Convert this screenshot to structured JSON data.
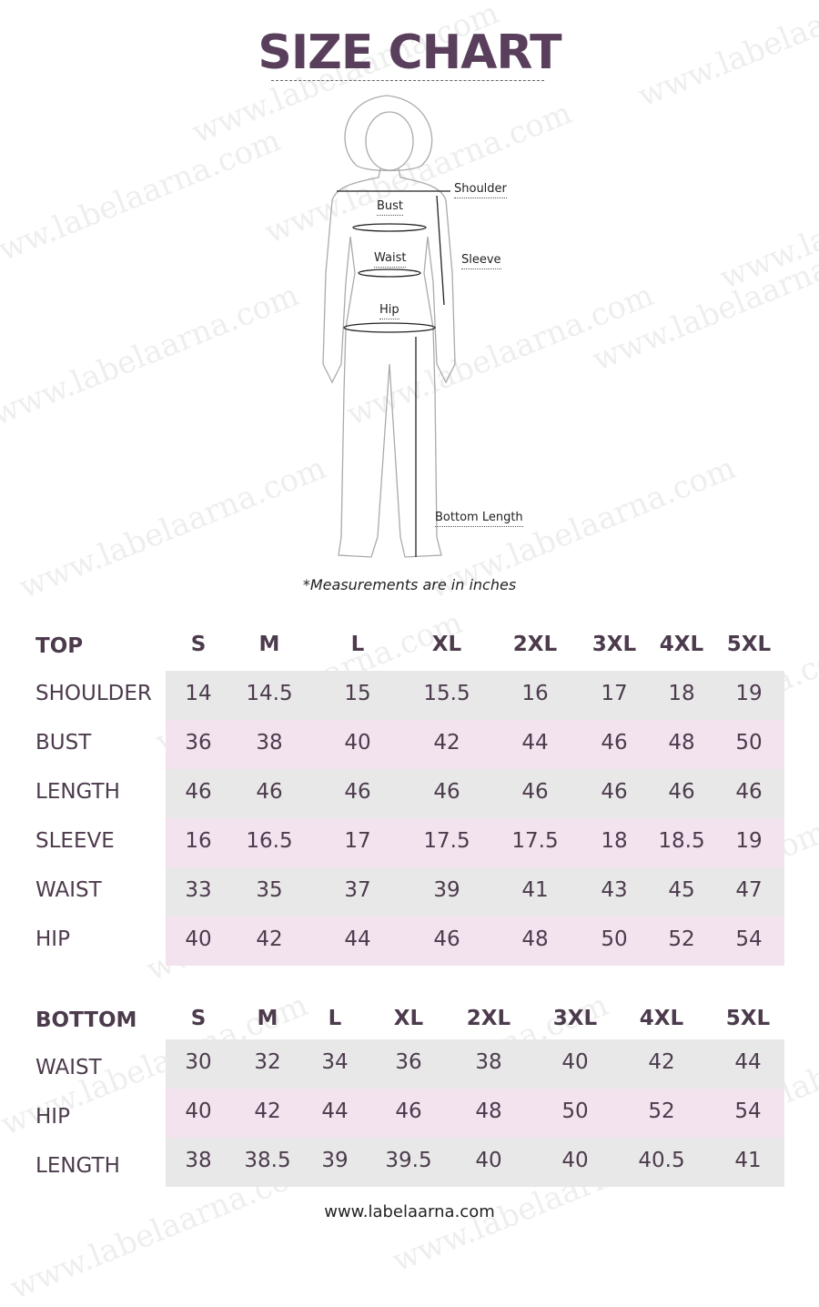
{
  "title": "SIZE CHART",
  "watermark": "www.labelaarna.com",
  "figure": {
    "labels": {
      "shoulder": "Shoulder",
      "bust": "Bust",
      "waist": "Waist",
      "sleeve": "Sleeve",
      "hip": "Hip",
      "bottom_length": "Bottom Length"
    }
  },
  "note": "*Measurements are in inches",
  "top_table": {
    "section": "TOP",
    "sizes": [
      "S",
      "M",
      "L",
      "XL",
      "2XL",
      "3XL",
      "4XL",
      "5XL"
    ],
    "rows": [
      {
        "label": "SHOULDER",
        "values": [
          "14",
          "14.5",
          "15",
          "15.5",
          "16",
          "17",
          "18",
          "19"
        ]
      },
      {
        "label": "BUST",
        "values": [
          "36",
          "38",
          "40",
          "42",
          "44",
          "46",
          "48",
          "50"
        ]
      },
      {
        "label": "LENGTH",
        "values": [
          "46",
          "46",
          "46",
          "46",
          "46",
          "46",
          "46",
          "46"
        ]
      },
      {
        "label": "SLEEVE",
        "values": [
          "16",
          "16.5",
          "17",
          "17.5",
          "17.5",
          "18",
          "18.5",
          "19"
        ]
      },
      {
        "label": "WAIST",
        "values": [
          "33",
          "35",
          "37",
          "39",
          "41",
          "43",
          "45",
          "47"
        ]
      },
      {
        "label": "HIP",
        "values": [
          "40",
          "42",
          "44",
          "46",
          "48",
          "50",
          "52",
          "54"
        ]
      }
    ]
  },
  "bottom_table": {
    "section": "BOTTOM",
    "sizes": [
      "S",
      "M",
      "L",
      "XL",
      "2XL",
      "3XL",
      "4XL",
      "5XL"
    ],
    "rows": [
      {
        "label": "WAIST",
        "values": [
          "30",
          "32",
          "34",
          "36",
          "38",
          "40",
          "42",
          "44"
        ]
      },
      {
        "label": "HIP",
        "values": [
          "40",
          "42",
          "44",
          "46",
          "48",
          "50",
          "52",
          "54"
        ]
      },
      {
        "label": "LENGTH",
        "values": [
          "38",
          "38.5",
          "39",
          "39.5",
          "40",
          "40",
          "40.5",
          "41"
        ]
      }
    ]
  },
  "colors": {
    "title": "#5a3f5c",
    "text": "#4c3b4d",
    "row_grey": "#e8e8e8",
    "row_pink": "#f3e3ef"
  },
  "footer": "www.labelaarna.com"
}
